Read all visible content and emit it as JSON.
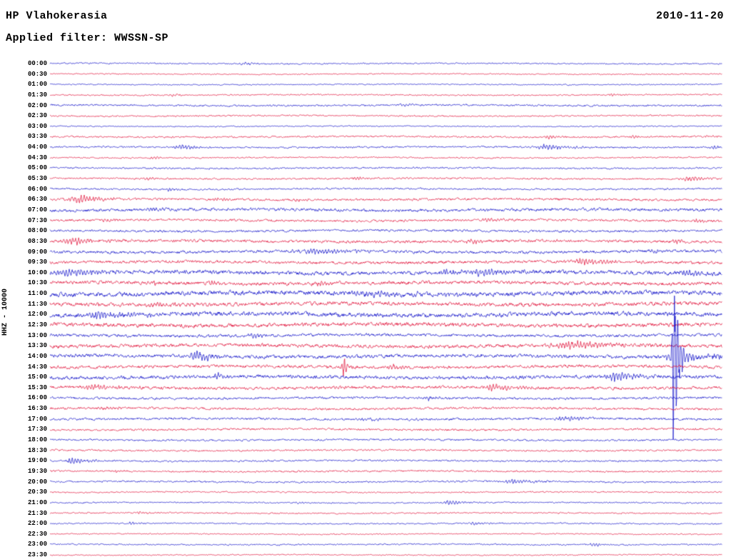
{
  "header": {
    "station": "HP Vlahokerasia",
    "date": "2010-11-20",
    "filter": "Applied filter: WWSSN-SP"
  },
  "chart_data": {
    "type": "line",
    "title": "HP Vlahokerasia",
    "subtitle": "Applied filter: WWSSN-SP",
    "date": "2010-11-20",
    "ylabel": "HHZ - 10000",
    "row_interval_minutes": 30,
    "legend_position": "none",
    "grid": false,
    "palette": {
      "blue": "#1010c8",
      "red": "#e01038"
    },
    "rows": [
      {
        "time": "00:00",
        "color": "blue",
        "noise": 1.2,
        "bursts": [
          [
            0.29,
            2,
            18
          ]
        ]
      },
      {
        "time": "00:30",
        "color": "red",
        "noise": 1.0,
        "bursts": []
      },
      {
        "time": "01:00",
        "color": "blue",
        "noise": 1.0,
        "bursts": []
      },
      {
        "time": "01:30",
        "color": "red",
        "noise": 1.2,
        "bursts": [
          [
            0.183,
            2,
            15
          ],
          [
            0.838,
            2,
            15
          ]
        ]
      },
      {
        "time": "02:00",
        "color": "blue",
        "noise": 1.6,
        "bursts": [
          [
            0.52,
            2,
            20
          ]
        ]
      },
      {
        "time": "02:30",
        "color": "red",
        "noise": 1.3,
        "bursts": []
      },
      {
        "time": "03:00",
        "color": "blue",
        "noise": 1.0,
        "bursts": []
      },
      {
        "time": "03:30",
        "color": "red",
        "noise": 1.5,
        "bursts": [
          [
            0.743,
            2.5,
            20
          ],
          [
            0.87,
            2,
            15
          ],
          [
            0.976,
            2,
            10
          ]
        ]
      },
      {
        "time": "04:00",
        "color": "blue",
        "noise": 1.5,
        "bursts": [
          [
            0.196,
            4,
            25
          ],
          [
            0.738,
            5,
            30
          ],
          [
            0.987,
            3,
            12
          ]
        ]
      },
      {
        "time": "04:30",
        "color": "red",
        "noise": 1.2,
        "bursts": [
          [
            0.154,
            2,
            12
          ]
        ]
      },
      {
        "time": "05:00",
        "color": "blue",
        "noise": 1.4,
        "bursts": []
      },
      {
        "time": "05:30",
        "color": "red",
        "noise": 1.5,
        "bursts": [
          [
            0.143,
            2.5,
            15
          ],
          [
            0.456,
            2.5,
            15
          ],
          [
            0.95,
            4,
            25
          ]
        ]
      },
      {
        "time": "06:00",
        "color": "blue",
        "noise": 1.5,
        "bursts": [
          [
            0.177,
            3,
            8
          ]
        ]
      },
      {
        "time": "06:30",
        "color": "red",
        "noise": 2.0,
        "bursts": [
          [
            0.045,
            6,
            35
          ],
          [
            0.249,
            2.5,
            15
          ],
          [
            0.371,
            2,
            15
          ]
        ]
      },
      {
        "time": "07:00",
        "color": "blue",
        "noise": 2.6,
        "bursts": [
          [
            0.149,
            3,
            20
          ]
        ]
      },
      {
        "time": "07:30",
        "color": "red",
        "noise": 2.0,
        "bursts": [
          [
            0.085,
            2.5,
            15
          ],
          [
            0.651,
            2.5,
            15
          ],
          [
            0.96,
            2.5,
            15
          ]
        ]
      },
      {
        "time": "08:00",
        "color": "blue",
        "noise": 2.0,
        "bursts": []
      },
      {
        "time": "08:30",
        "color": "red",
        "noise": 2.4,
        "bursts": [
          [
            0.037,
            5,
            30
          ],
          [
            0.626,
            3,
            20
          ],
          [
            0.934,
            3,
            20
          ]
        ]
      },
      {
        "time": "09:00",
        "color": "blue",
        "noise": 2.5,
        "bursts": [
          [
            0.4,
            3.5,
            70
          ],
          [
            0.894,
            3,
            15
          ]
        ]
      },
      {
        "time": "09:30",
        "color": "red",
        "noise": 2.5,
        "bursts": [
          [
            0.796,
            5,
            40
          ],
          [
            0.9,
            3,
            6
          ]
        ]
      },
      {
        "time": "10:00",
        "color": "blue",
        "noise": 3.4,
        "bursts": [
          [
            0.032,
            5,
            50
          ],
          [
            0.589,
            4,
            30
          ],
          [
            0.647,
            5,
            30
          ],
          [
            0.95,
            4,
            25
          ]
        ]
      },
      {
        "time": "10:30",
        "color": "red",
        "noise": 3.0,
        "bursts": [
          [
            0.149,
            3,
            20
          ],
          [
            0.244,
            3,
            20
          ],
          [
            0.403,
            3,
            20
          ]
        ]
      },
      {
        "time": "11:00",
        "color": "blue",
        "noise": 4.0,
        "bursts": [
          [
            0.483,
            4,
            60
          ]
        ]
      },
      {
        "time": "11:30",
        "color": "red",
        "noise": 3.2,
        "bursts": [
          [
            0.154,
            4,
            30
          ]
        ]
      },
      {
        "time": "12:00",
        "color": "blue",
        "noise": 3.8,
        "bursts": [
          [
            0.08,
            5,
            45
          ]
        ]
      },
      {
        "time": "12:30",
        "color": "red",
        "noise": 3.4,
        "bursts": []
      },
      {
        "time": "13:00",
        "color": "blue",
        "noise": 2.5,
        "bursts": [
          [
            0.303,
            3,
            18
          ]
        ]
      },
      {
        "time": "13:30",
        "color": "red",
        "noise": 3.0,
        "bursts": [
          [
            0.775,
            6,
            55
          ]
        ]
      },
      {
        "time": "14:00",
        "color": "blue",
        "noise": 3.0,
        "bursts": [
          [
            0.218,
            10,
            18
          ],
          [
            0.928,
            140,
            6
          ],
          [
            0.932,
            13,
            28
          ],
          [
            0.965,
            5,
            70
          ]
        ]
      },
      {
        "time": "14:30",
        "color": "red",
        "noise": 2.6,
        "bursts": [
          [
            0.437,
            18,
            4
          ],
          [
            0.51,
            5,
            12
          ]
        ]
      },
      {
        "time": "15:00",
        "color": "blue",
        "noise": 3.0,
        "bursts": [
          [
            0.249,
            4,
            18
          ],
          [
            0.841,
            7,
            30
          ]
        ]
      },
      {
        "time": "15:30",
        "color": "red",
        "noise": 2.5,
        "bursts": [
          [
            0.066,
            5,
            30
          ],
          [
            0.658,
            5,
            30
          ]
        ]
      },
      {
        "time": "16:00",
        "color": "blue",
        "noise": 2.0,
        "bursts": [
          [
            0.56,
            3,
            18
          ]
        ]
      },
      {
        "time": "16:30",
        "color": "red",
        "noise": 2.0,
        "bursts": [
          [
            0.08,
            3,
            18
          ]
        ]
      },
      {
        "time": "17:00",
        "color": "blue",
        "noise": 2.0,
        "bursts": [
          [
            0.467,
            3,
            18
          ],
          [
            0.77,
            3,
            40
          ]
        ]
      },
      {
        "time": "17:30",
        "color": "red",
        "noise": 1.8,
        "bursts": []
      },
      {
        "time": "18:00",
        "color": "blue",
        "noise": 1.6,
        "bursts": []
      },
      {
        "time": "18:30",
        "color": "red",
        "noise": 1.5,
        "bursts": []
      },
      {
        "time": "19:00",
        "color": "blue",
        "noise": 1.5,
        "bursts": [
          [
            0.032,
            5,
            22
          ]
        ]
      },
      {
        "time": "19:30",
        "color": "red",
        "noise": 1.5,
        "bursts": [
          [
            0.096,
            2,
            12
          ]
        ]
      },
      {
        "time": "20:00",
        "color": "blue",
        "noise": 1.5,
        "bursts": [
          [
            0.69,
            4,
            28
          ]
        ]
      },
      {
        "time": "20:30",
        "color": "red",
        "noise": 1.2,
        "bursts": []
      },
      {
        "time": "21:00",
        "color": "blue",
        "noise": 1.2,
        "bursts": [
          [
            0.37,
            2,
            15
          ],
          [
            0.594,
            3,
            25
          ]
        ]
      },
      {
        "time": "21:30",
        "color": "red",
        "noise": 1.2,
        "bursts": [
          [
            0.133,
            2.5,
            15
          ]
        ]
      },
      {
        "time": "22:00",
        "color": "blue",
        "noise": 1.2,
        "bursts": [
          [
            0.122,
            2.5,
            15
          ],
          [
            0.632,
            2.5,
            15
          ]
        ]
      },
      {
        "time": "22:30",
        "color": "red",
        "noise": 1.0,
        "bursts": []
      },
      {
        "time": "23:00",
        "color": "blue",
        "noise": 1.2,
        "bursts": [
          [
            0.807,
            2.5,
            15
          ]
        ]
      },
      {
        "time": "23:30",
        "color": "red",
        "noise": 1.0,
        "bursts": []
      }
    ]
  }
}
